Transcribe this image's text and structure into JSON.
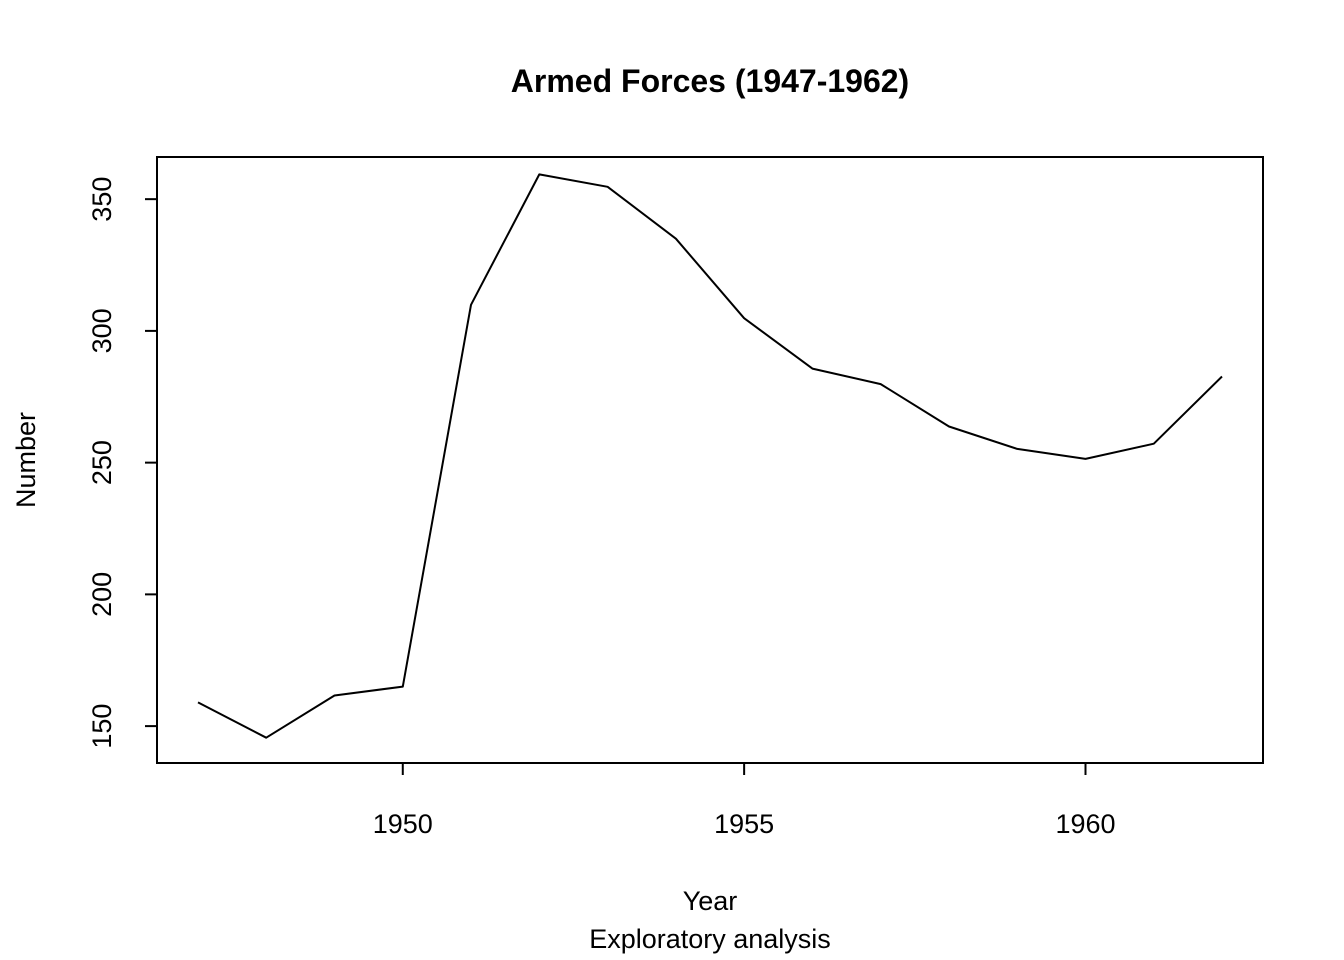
{
  "chart_data": {
    "type": "line",
    "title": "Armed Forces (1947-1962)",
    "xlabel": "Year",
    "ylabel": "Number",
    "subtitle": "Exploratory analysis",
    "xlim": [
      1946.4,
      1962.6
    ],
    "ylim": [
      136,
      366
    ],
    "x_ticks": [
      1950,
      1955,
      1960
    ],
    "y_ticks": [
      150,
      200,
      250,
      300,
      350
    ],
    "grid": false,
    "legend": "none",
    "line_color": "#000000",
    "series": [
      {
        "x": [
          1947,
          1948,
          1949,
          1950,
          1951,
          1952,
          1953,
          1954,
          1955,
          1956,
          1957,
          1958,
          1959,
          1960,
          1961,
          1962
        ],
        "values": [
          159.0,
          145.6,
          161.6,
          165.0,
          309.9,
          359.4,
          354.7,
          335.0,
          304.8,
          285.7,
          279.8,
          263.7,
          255.2,
          251.4,
          257.2,
          282.7
        ]
      }
    ]
  }
}
